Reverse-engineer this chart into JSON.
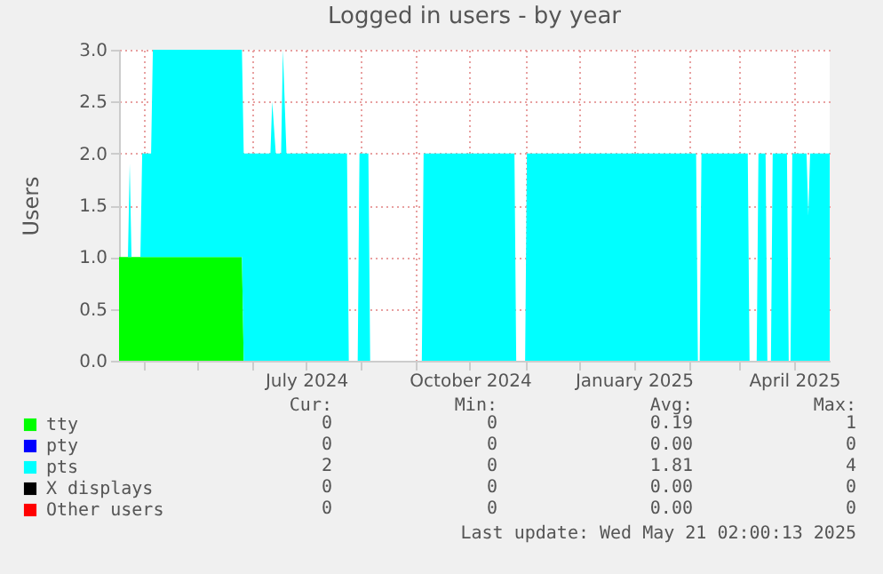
{
  "chart_data": {
    "type": "area",
    "title": "Logged in users - by year",
    "ylabel": "Users",
    "stacked": true,
    "grid": true,
    "legend": "bottom left",
    "x": [
      "2024-03-18",
      "2024-03-23",
      "2024-03-24",
      "2024-03-25",
      "2024-03-30",
      "2024-03-31",
      "2024-04-05",
      "2024-04-06",
      "2024-05-26",
      "2024-05-27",
      "2024-06-11",
      "2024-06-12",
      "2024-06-14",
      "2024-06-17",
      "2024-06-18",
      "2024-06-20",
      "2024-07-24",
      "2024-07-25",
      "2024-07-30",
      "2024-07-31",
      "2024-08-05",
      "2024-08-06",
      "2024-09-04",
      "2024-09-05",
      "2024-10-26",
      "2024-10-27",
      "2024-11-01",
      "2024-11-02",
      "2025-02-05",
      "2025-02-06",
      "2025-02-07",
      "2025-02-08",
      "2025-03-06",
      "2025-03-07",
      "2025-03-11",
      "2025-03-12",
      "2025-03-16",
      "2025-03-17",
      "2025-03-19",
      "2025-03-20",
      "2025-03-28",
      "2025-03-29",
      "2025-03-30",
      "2025-03-31",
      "2025-04-08",
      "2025-04-09",
      "2025-04-10",
      "2025-04-21"
    ],
    "series": [
      {
        "name": "tty",
        "color": "#00ff00",
        "values": [
          1,
          1,
          1,
          1,
          1,
          1,
          1,
          1,
          1,
          0,
          0,
          0,
          0,
          0,
          0,
          0,
          0,
          0,
          0,
          0,
          0,
          0,
          0,
          0,
          0,
          0,
          0,
          0,
          0,
          0,
          0,
          0,
          0,
          0,
          0,
          0,
          0,
          0,
          0,
          0,
          0,
          0,
          0,
          0,
          0,
          0,
          0,
          0
        ]
      },
      {
        "name": "pty",
        "color": "#0000ff",
        "values": [
          null,
          null,
          null,
          null,
          null,
          null,
          null,
          null,
          null,
          null,
          null,
          null,
          null,
          null,
          null,
          null,
          null,
          null,
          null,
          null,
          null,
          null,
          null,
          null,
          null,
          null,
          null,
          null,
          null,
          null,
          null,
          null,
          null,
          null,
          null,
          null,
          null,
          null,
          null,
          null,
          null,
          null,
          null,
          null,
          null,
          null,
          null,
          null
        ]
      },
      {
        "name": "pts",
        "color": "#00ffff",
        "values": [
          0,
          0,
          0.9,
          0,
          0,
          1,
          1,
          2,
          2,
          2,
          2,
          2.5,
          2,
          2,
          3,
          2,
          2,
          0,
          0,
          2,
          2,
          0,
          0,
          2,
          2,
          0,
          0,
          2,
          2,
          0,
          0,
          2,
          2,
          0,
          0,
          2,
          2,
          0,
          0,
          2,
          2,
          0,
          0,
          2,
          2,
          1.4,
          2,
          2
        ]
      },
      {
        "name": "X displays",
        "color": "#000000",
        "values": [
          null,
          null,
          null,
          null,
          null,
          null,
          null,
          null,
          null,
          null,
          null,
          null,
          null,
          null,
          null,
          null,
          null,
          null,
          null,
          null,
          null,
          null,
          null,
          null,
          null,
          null,
          null,
          null,
          null,
          null,
          null,
          null,
          null,
          null,
          null,
          null,
          null,
          null,
          null,
          null,
          null,
          null,
          null,
          null,
          null,
          null,
          null,
          null
        ]
      },
      {
        "name": "Other users",
        "color": "#ff0000",
        "values": [
          null,
          null,
          null,
          null,
          null,
          null,
          null,
          null,
          null,
          null,
          null,
          null,
          null,
          null,
          null,
          null,
          null,
          null,
          null,
          null,
          null,
          null,
          null,
          null,
          null,
          null,
          null,
          null,
          null,
          null,
          null,
          null,
          null,
          null,
          null,
          null,
          null,
          null,
          null,
          null,
          null,
          null,
          null,
          null,
          null,
          null,
          null,
          null
        ]
      }
    ],
    "xlim": [
      "2024-03-18",
      "2025-04-21"
    ],
    "xticks": [
      {
        "value": "2024-04-01",
        "label": null
      },
      {
        "value": "2024-05-01",
        "label": null
      },
      {
        "value": "2024-06-01",
        "label": null
      },
      {
        "value": "2024-07-01",
        "label": "July 2024"
      },
      {
        "value": "2024-08-01",
        "label": null
      },
      {
        "value": "2024-09-01",
        "label": null
      },
      {
        "value": "2024-10-01",
        "label": "October 2024"
      },
      {
        "value": "2024-11-01",
        "label": null
      },
      {
        "value": "2024-12-01",
        "label": null
      },
      {
        "value": "2025-01-01",
        "label": "January 2025"
      },
      {
        "value": "2025-02-01",
        "label": null
      },
      {
        "value": "2025-03-01",
        "label": null
      },
      {
        "value": "2025-04-01",
        "label": "April 2025"
      }
    ],
    "ylim": [
      0,
      3
    ],
    "yticks": [
      {
        "value": 0,
        "label": "0.0"
      },
      {
        "value": 0.5,
        "label": "0.5"
      },
      {
        "value": 1,
        "label": "1.0"
      },
      {
        "value": 1.5,
        "label": "1.5"
      },
      {
        "value": 2,
        "label": "2.0"
      },
      {
        "value": 2.5,
        "label": "2.5"
      },
      {
        "value": 3,
        "label": "3.0"
      }
    ],
    "annotations": [
      "Cur:",
      "Min:",
      "Avg:",
      "Max:",
      "0",
      "0",
      "0.19",
      "1",
      "0",
      "0",
      "0.00",
      "0",
      "2",
      "0",
      "1.81",
      "4",
      "0",
      "0",
      "0.00",
      "0",
      "0",
      "0",
      "0.00",
      "0",
      "Last update: Wed May 21 02:00:13 2025"
    ]
  }
}
